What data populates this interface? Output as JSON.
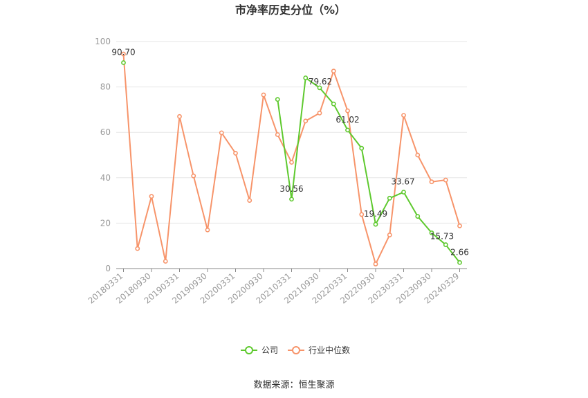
{
  "chart_data": {
    "type": "line",
    "title": "市净率历史分位（%）",
    "source": "数据来源：恒生聚源",
    "ylim": [
      0,
      100
    ],
    "yticks": [
      0,
      20,
      40,
      60,
      80,
      100
    ],
    "categories": [
      "20180331",
      "20180630",
      "20180930",
      "20181231",
      "20190331",
      "20190630",
      "20190930",
      "20191231",
      "20200331",
      "20200630",
      "20200930",
      "20201231",
      "20210331",
      "20210630",
      "20210930",
      "20211231",
      "20220331",
      "20220630",
      "20220930",
      "20221231",
      "20230331",
      "20230630",
      "20230930",
      "20231231",
      "20240329"
    ],
    "tick_labels": [
      "20180331",
      "20180930",
      "20190331",
      "20190930",
      "20200331",
      "20200930",
      "20210331",
      "20210930",
      "20220331",
      "20220930",
      "20230331",
      "20230930",
      "20240329"
    ],
    "legend_position": "bottom-center",
    "grid": true,
    "series": [
      {
        "name": "公司",
        "color": "#5ec92e",
        "values": [
          90.7,
          null,
          null,
          null,
          null,
          null,
          null,
          null,
          null,
          null,
          null,
          74.5,
          30.56,
          84.0,
          79.62,
          72.5,
          61.02,
          53.0,
          19.49,
          31.0,
          33.67,
          23.0,
          15.73,
          10.5,
          2.66
        ],
        "labels": [
          {
            "index": 0,
            "text": "90.70"
          },
          {
            "index": 12,
            "text": "30.56"
          },
          {
            "index": 14,
            "text": "79.62"
          },
          {
            "index": 16,
            "text": "61.02"
          },
          {
            "index": 18,
            "text": "19.49"
          },
          {
            "index": 20,
            "text": "33.67"
          },
          {
            "index": 22,
            "text": "15.73"
          },
          {
            "index": 24,
            "text": "2.66"
          }
        ]
      },
      {
        "name": "行业中位数",
        "color": "#f7946a",
        "values": [
          94.5,
          8.8,
          31.8,
          3.2,
          67.0,
          40.8,
          17.0,
          59.8,
          50.8,
          30.0,
          76.5,
          59.0,
          46.8,
          65.0,
          68.5,
          87.0,
          69.5,
          23.8,
          2.0,
          14.8,
          67.5,
          50.0,
          38.2,
          39.0,
          18.8
        ]
      }
    ]
  }
}
